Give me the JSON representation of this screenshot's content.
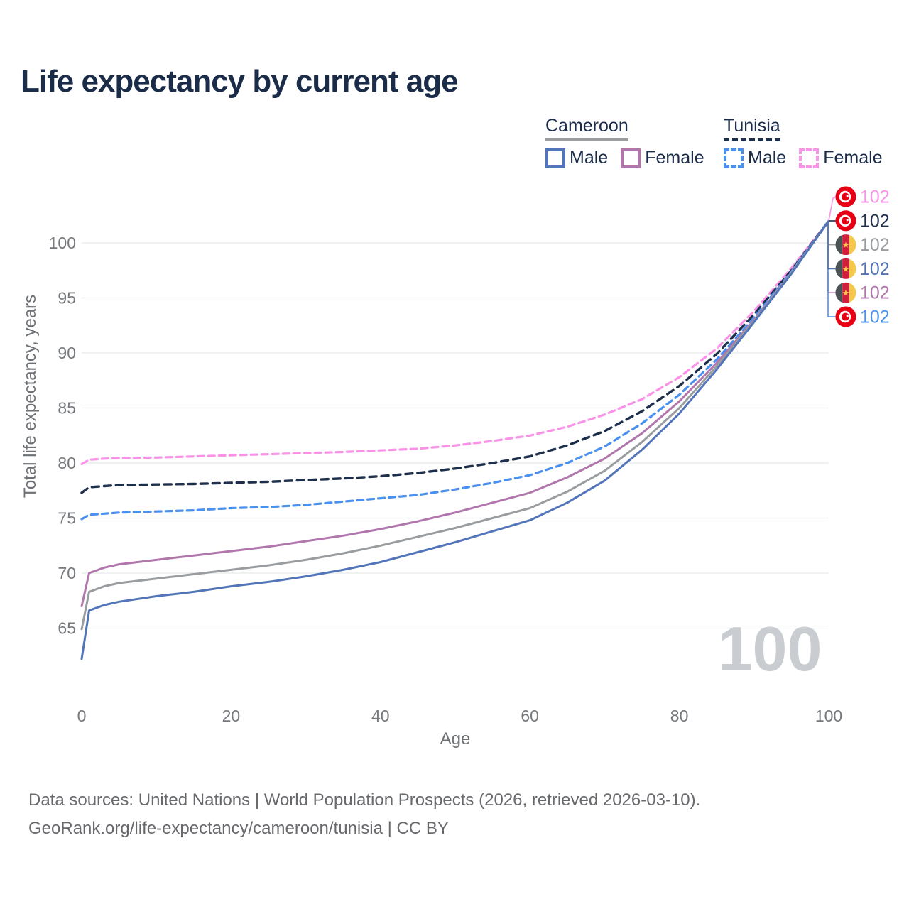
{
  "title": "Life expectancy by current age",
  "legend": {
    "cameroon": {
      "label": "Cameroon",
      "male": "Male",
      "female": "Female"
    },
    "tunisia": {
      "label": "Tunisia",
      "male": "Male",
      "female": "Female"
    }
  },
  "watermark": "100",
  "footer": {
    "line1": "Data sources: United Nations | World Population Prospects (2026, retrieved 2026-03-10).",
    "line2": "GeoRank.org/life-expectancy/cameroon/tunisia | CC BY"
  },
  "colors": {
    "title": "#1b2c49",
    "grid": "#e8e9eb",
    "tick_text": "#75787c",
    "cameroon_male": "#5274b8",
    "cameroon_female": "#b177ad",
    "cameroon_both": "#9a9da0",
    "tunisia_male": "#4a90ee",
    "tunisia_female": "#fa93e8",
    "tunisia_both": "#1d2f4b"
  },
  "chart_data": {
    "type": "line",
    "title": "Life expectancy by current age",
    "xlabel": "Age",
    "ylabel": "Total life expectancy, years",
    "x_ticks": [
      0,
      20,
      40,
      60,
      80,
      100
    ],
    "y_ticks": [
      65,
      70,
      75,
      80,
      85,
      90,
      95,
      100
    ],
    "xlim": [
      0,
      100
    ],
    "ylim": [
      61,
      103
    ],
    "grid": true,
    "legend_position": "top-right",
    "x": [
      0,
      1,
      3,
      5,
      10,
      15,
      20,
      25,
      30,
      35,
      40,
      45,
      50,
      55,
      60,
      65,
      70,
      75,
      80,
      85,
      90,
      95,
      100
    ],
    "series": [
      {
        "name": "Tunisia Female",
        "country": "Tunisia",
        "sex": "Female",
        "color": "#fa93e8",
        "dash": true,
        "width": 3.2,
        "end_label": "102",
        "flag": "tunisia",
        "label_row": 0,
        "values": [
          79.9,
          80.3,
          80.4,
          80.45,
          80.5,
          80.6,
          80.7,
          80.8,
          80.9,
          81.0,
          81.15,
          81.3,
          81.6,
          82.0,
          82.5,
          83.3,
          84.4,
          85.8,
          87.8,
          90.4,
          93.8,
          97.7,
          102
        ]
      },
      {
        "name": "Tunisia Both sexes",
        "country": "Tunisia",
        "sex": "Both",
        "color": "#1d2f4b",
        "dash": true,
        "width": 3.4,
        "end_label": "102",
        "flag": "tunisia",
        "label_row": 1,
        "values": [
          77.3,
          77.8,
          77.9,
          78.0,
          78.05,
          78.1,
          78.2,
          78.3,
          78.45,
          78.6,
          78.8,
          79.1,
          79.5,
          80.0,
          80.6,
          81.6,
          82.9,
          84.7,
          87.0,
          89.9,
          93.5,
          97.5,
          102
        ]
      },
      {
        "name": "Tunisia Male",
        "country": "Tunisia",
        "sex": "Male",
        "color": "#4a90ee",
        "dash": true,
        "width": 3.2,
        "end_label": "102",
        "flag": "tunisia",
        "label_row": 5,
        "values": [
          74.9,
          75.3,
          75.4,
          75.5,
          75.6,
          75.7,
          75.9,
          76.0,
          76.2,
          76.5,
          76.8,
          77.1,
          77.6,
          78.2,
          78.9,
          80.0,
          81.5,
          83.6,
          86.2,
          89.4,
          93.2,
          97.4,
          102
        ]
      },
      {
        "name": "Cameroon Female",
        "country": "Cameroon",
        "sex": "Female",
        "color": "#b177ad",
        "dash": false,
        "width": 3,
        "end_label": "102",
        "flag": "cameroon",
        "label_row": 4,
        "values": [
          67.0,
          70.0,
          70.5,
          70.8,
          71.2,
          71.6,
          72.0,
          72.4,
          72.9,
          73.4,
          74.0,
          74.7,
          75.5,
          76.4,
          77.3,
          78.7,
          80.4,
          82.7,
          85.6,
          89.1,
          93.0,
          97.3,
          102
        ]
      },
      {
        "name": "Cameroon Both sexes",
        "country": "Cameroon",
        "sex": "Both",
        "color": "#9a9da0",
        "dash": false,
        "width": 3,
        "end_label": "102",
        "flag": "cameroon",
        "label_row": 2,
        "values": [
          64.9,
          68.3,
          68.8,
          69.1,
          69.5,
          69.9,
          70.3,
          70.7,
          71.2,
          71.8,
          72.5,
          73.3,
          74.1,
          75.0,
          75.9,
          77.4,
          79.3,
          81.9,
          85.0,
          88.8,
          92.9,
          97.3,
          102
        ]
      },
      {
        "name": "Cameroon Male",
        "country": "Cameroon",
        "sex": "Male",
        "color": "#5274b8",
        "dash": false,
        "width": 3,
        "end_label": "102",
        "flag": "cameroon",
        "label_row": 3,
        "values": [
          62.2,
          66.6,
          67.1,
          67.4,
          67.9,
          68.3,
          68.8,
          69.2,
          69.7,
          70.3,
          71.0,
          71.9,
          72.8,
          73.8,
          74.8,
          76.4,
          78.4,
          81.2,
          84.5,
          88.5,
          92.8,
          97.2,
          102
        ]
      }
    ]
  }
}
